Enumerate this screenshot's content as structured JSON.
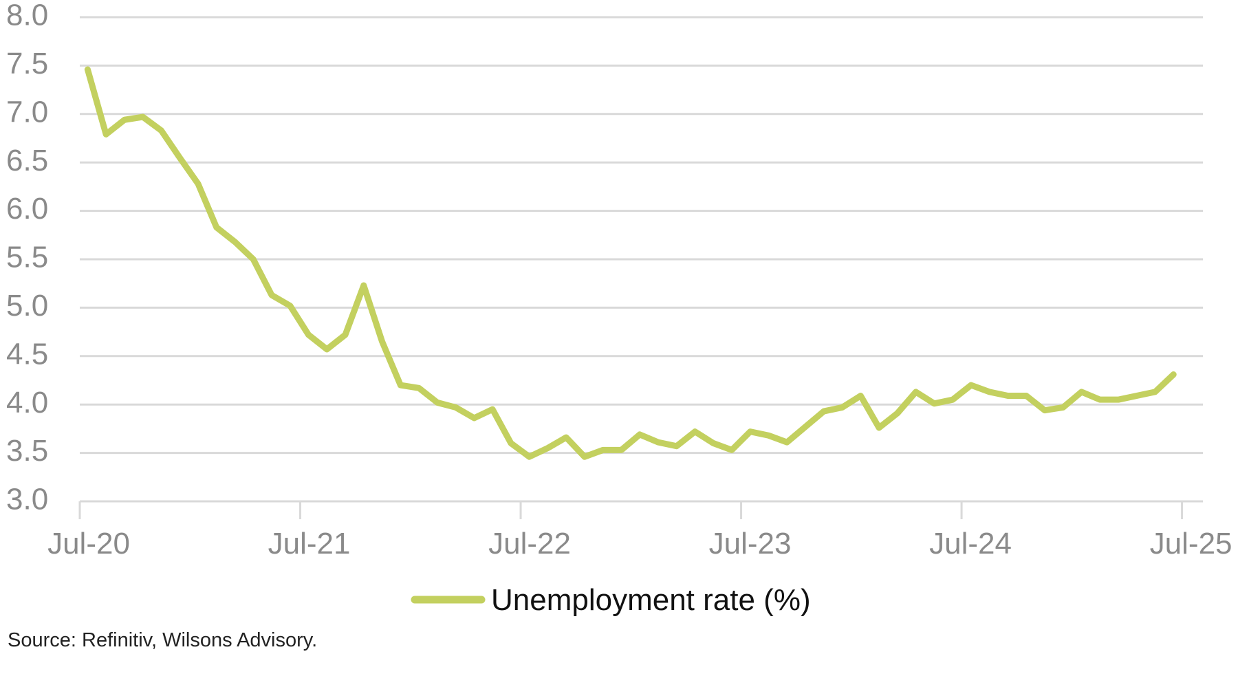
{
  "chart_data": {
    "type": "line",
    "title": "",
    "xlabel": "",
    "ylabel": "",
    "ylim": [
      3.0,
      8.0
    ],
    "yticks": [
      "3.0",
      "3.5",
      "4.0",
      "4.5",
      "5.0",
      "5.5",
      "6.0",
      "6.5",
      "7.0",
      "7.5",
      "8.0"
    ],
    "xticks": [
      "Jul-20",
      "Jul-21",
      "Jul-22",
      "Jul-23",
      "Jul-24",
      "Jul-25"
    ],
    "x_start": "Jul-20",
    "x_end": "Jun-25",
    "frequency": "monthly",
    "grid": true,
    "legend_position": "bottom",
    "series": [
      {
        "name": "Unemployment rate (%)",
        "color": "#c3d05f",
        "values": [
          7.46,
          6.79,
          6.94,
          6.97,
          6.83,
          6.55,
          6.28,
          5.83,
          5.68,
          5.5,
          5.13,
          5.02,
          4.72,
          4.57,
          4.72,
          5.23,
          4.65,
          4.2,
          4.17,
          4.02,
          3.97,
          3.86,
          3.95,
          3.6,
          3.46,
          3.55,
          3.66,
          3.46,
          3.53,
          3.53,
          3.69,
          3.61,
          3.57,
          3.72,
          3.6,
          3.53,
          3.72,
          3.68,
          3.61,
          3.77,
          3.93,
          3.97,
          4.09,
          3.76,
          3.91,
          4.13,
          4.01,
          4.05,
          4.2,
          4.13,
          4.09,
          4.09,
          3.94,
          3.97,
          4.13,
          4.05,
          4.05,
          4.09,
          4.13,
          4.31
        ]
      }
    ]
  },
  "source": "Source: Refinitiv, Wilsons Advisory.",
  "colors": {
    "grid": "#d9d9d9",
    "tick_text": "#8a8a8a"
  }
}
